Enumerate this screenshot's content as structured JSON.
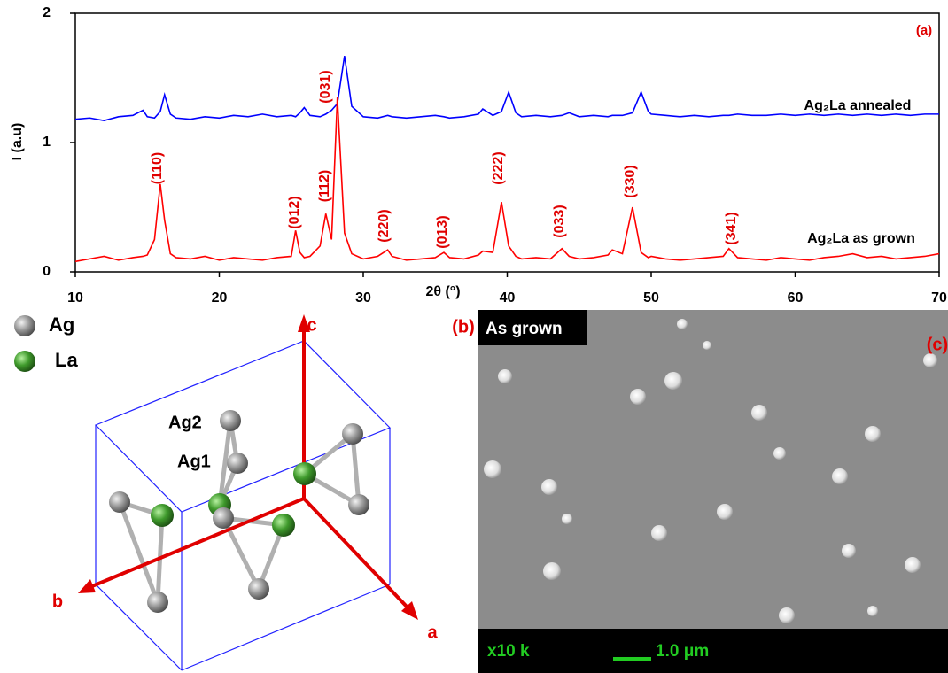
{
  "chart_data": {
    "type": "line",
    "xlabel": "2θ (°)",
    "ylabel": "I (a.u)",
    "panel_label": "(a)",
    "x": [
      10,
      11,
      12,
      13,
      14,
      14.7,
      15,
      15.5,
      15.9,
      16.2,
      16.6,
      17,
      18,
      19,
      20,
      21,
      22,
      23,
      24,
      25,
      25.3,
      25.6,
      25.9,
      26.3,
      27,
      27.4,
      27.8,
      28.2,
      28.7,
      29.2,
      30,
      31,
      31.7,
      32,
      33,
      34,
      35,
      35.6,
      36,
      37,
      38,
      38.3,
      39,
      39.6,
      40.1,
      40.6,
      41,
      42,
      43,
      43.8,
      44.3,
      45,
      46,
      47,
      47.3,
      48,
      48.7,
      49.3,
      49.8,
      50,
      51,
      52,
      53,
      54,
      55,
      55.4,
      56,
      57,
      58,
      59,
      60,
      61,
      62,
      63,
      64,
      65,
      66,
      67,
      68,
      69,
      70
    ],
    "series": [
      {
        "name": "Ag₂La annealed",
        "color": "#0000ff",
        "values": [
          1.18,
          1.19,
          1.17,
          1.2,
          1.21,
          1.25,
          1.2,
          1.19,
          1.24,
          1.37,
          1.22,
          1.19,
          1.18,
          1.2,
          1.19,
          1.21,
          1.2,
          1.22,
          1.2,
          1.21,
          1.2,
          1.23,
          1.27,
          1.21,
          1.2,
          1.22,
          1.25,
          1.3,
          1.67,
          1.28,
          1.2,
          1.19,
          1.21,
          1.2,
          1.19,
          1.2,
          1.21,
          1.2,
          1.19,
          1.2,
          1.22,
          1.26,
          1.21,
          1.24,
          1.39,
          1.23,
          1.2,
          1.21,
          1.2,
          1.21,
          1.23,
          1.2,
          1.21,
          1.2,
          1.21,
          1.21,
          1.23,
          1.39,
          1.24,
          1.22,
          1.21,
          1.2,
          1.21,
          1.2,
          1.21,
          1.21,
          1.22,
          1.21,
          1.21,
          1.22,
          1.21,
          1.22,
          1.21,
          1.22,
          1.21,
          1.22,
          1.21,
          1.22,
          1.21,
          1.22,
          1.22
        ]
      },
      {
        "name": "Ag₂La as grown",
        "color": "#ff0000",
        "values": [
          0.08,
          0.1,
          0.12,
          0.09,
          0.11,
          0.12,
          0.13,
          0.25,
          0.68,
          0.4,
          0.14,
          0.11,
          0.1,
          0.12,
          0.09,
          0.11,
          0.1,
          0.09,
          0.11,
          0.12,
          0.32,
          0.15,
          0.11,
          0.12,
          0.2,
          0.45,
          0.25,
          1.35,
          0.3,
          0.14,
          0.1,
          0.12,
          0.17,
          0.12,
          0.09,
          0.1,
          0.11,
          0.15,
          0.11,
          0.1,
          0.13,
          0.16,
          0.15,
          0.54,
          0.2,
          0.12,
          0.1,
          0.11,
          0.1,
          0.18,
          0.12,
          0.1,
          0.11,
          0.13,
          0.17,
          0.14,
          0.5,
          0.15,
          0.11,
          0.12,
          0.1,
          0.09,
          0.1,
          0.11,
          0.12,
          0.18,
          0.11,
          0.1,
          0.09,
          0.11,
          0.1,
          0.09,
          0.11,
          0.12,
          0.14,
          0.11,
          0.12,
          0.1,
          0.11,
          0.12,
          0.14
        ]
      }
    ],
    "annotations": [
      "(110)",
      "(012)",
      "(112)",
      "(031)",
      "(220)",
      "(013)",
      "(222)",
      "(033)",
      "(330)",
      "(341)"
    ],
    "xlim": [
      10,
      70
    ],
    "xticks": [
      10,
      20,
      30,
      40,
      50,
      60,
      70
    ],
    "ylim": [
      0,
      2
    ],
    "yticks": [
      0,
      1,
      2
    ]
  },
  "structure": {
    "panel_label": "(b)",
    "legend": [
      "Ag",
      "La"
    ],
    "axes": [
      "c",
      "b",
      "a"
    ],
    "atom_labels": [
      "Ag2",
      "Ag1"
    ]
  },
  "sem": {
    "panel_label": "(c)",
    "caption": "As grown",
    "magnification": "x10 k",
    "scale_bar": "1.0 μm"
  }
}
